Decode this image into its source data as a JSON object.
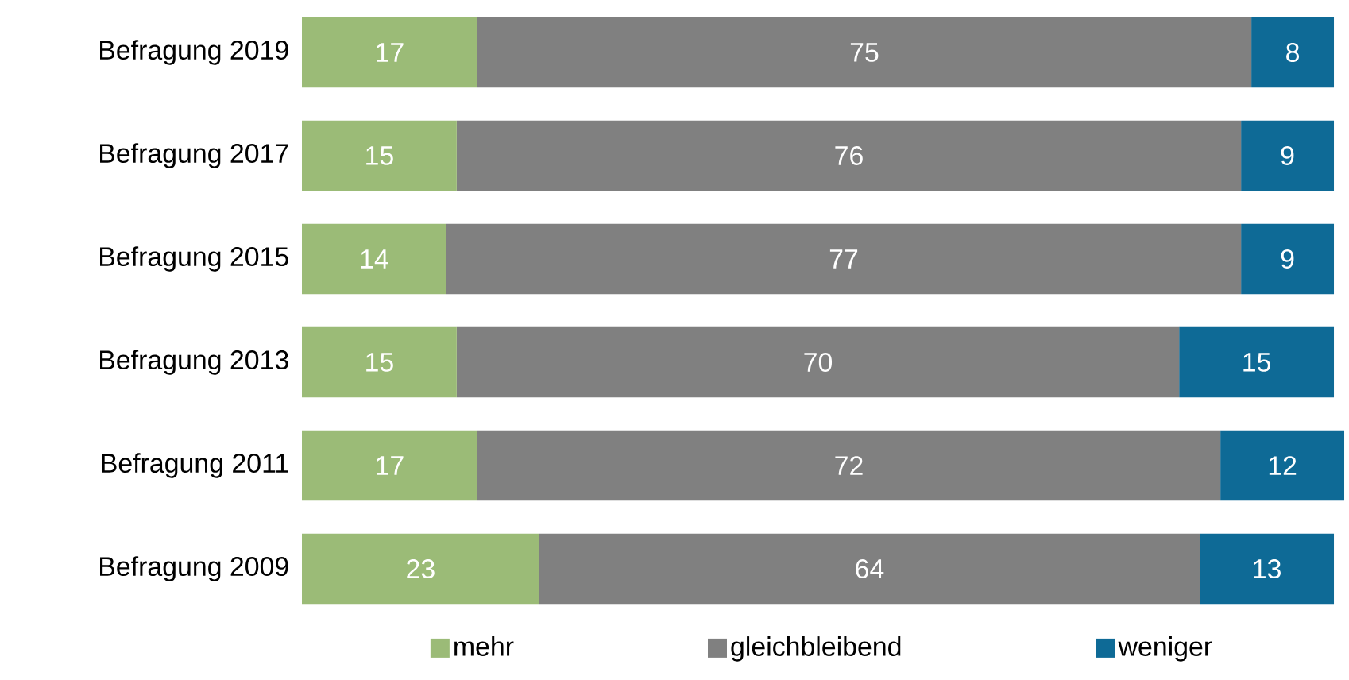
{
  "chart_data": {
    "type": "bar",
    "orientation": "horizontal",
    "stacked": true,
    "data_labels": true,
    "legend": "bottom",
    "tick_labels": "y",
    "categories": [
      "Befragung 2019",
      "Befragung 2017",
      "Befragung 2015",
      "Befragung 2013",
      "Befragung 2011",
      "Befragung 2009"
    ],
    "series": [
      {
        "name": "mehr",
        "color": "#9bbb77",
        "values": [
          17,
          15,
          14,
          15,
          17,
          23
        ]
      },
      {
        "name": "gleichbleibend",
        "color": "#808080",
        "values": [
          75,
          76,
          77,
          70,
          72,
          64
        ]
      },
      {
        "name": "weniger",
        "color": "#0e6a96",
        "values": [
          8,
          9,
          9,
          15,
          12,
          13
        ]
      }
    ]
  }
}
